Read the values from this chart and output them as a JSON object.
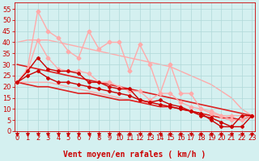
{
  "x": [
    0,
    1,
    2,
    3,
    4,
    5,
    6,
    7,
    8,
    9,
    10,
    11,
    12,
    13,
    14,
    15,
    16,
    17,
    18,
    19,
    20,
    21,
    22,
    23
  ],
  "lines": [
    {
      "y": [
        40,
        41,
        41,
        41,
        40,
        39,
        38,
        37,
        36,
        35,
        34,
        33,
        32,
        31,
        30,
        29,
        27,
        25,
        23,
        21,
        18,
        15,
        10,
        7
      ],
      "color": "#ffaaaa",
      "lw": 1.0,
      "marker": null,
      "zorder": 1
    },
    {
      "y": [
        22,
        22,
        22,
        22,
        21,
        20,
        19,
        18,
        17,
        16,
        15,
        14,
        13,
        13,
        12,
        11,
        10,
        9,
        8,
        7,
        6,
        5,
        5,
        7
      ],
      "color": "#ffaaaa",
      "lw": 1.0,
      "marker": null,
      "zorder": 1
    },
    {
      "y": [
        22,
        28,
        54,
        45,
        42,
        36,
        33,
        45,
        37,
        40,
        40,
        27,
        39,
        30,
        17,
        30,
        17,
        17,
        10,
        8,
        7,
        7,
        7,
        7
      ],
      "color": "#ffaaaa",
      "lw": 1.0,
      "marker": "D",
      "ms": 2.5,
      "zorder": 3
    },
    {
      "y": [
        22,
        27,
        41,
        33,
        28,
        27,
        27,
        26,
        22,
        22,
        20,
        18,
        18,
        14,
        17,
        17,
        13,
        11,
        10,
        9,
        7,
        5,
        5,
        7
      ],
      "color": "#ffaaaa",
      "lw": 1.0,
      "marker": "D",
      "ms": 2.5,
      "zorder": 3
    },
    {
      "y": [
        30,
        29,
        28,
        27,
        26,
        25,
        24,
        23,
        22,
        21,
        20,
        19,
        18,
        17,
        16,
        15,
        14,
        13,
        12,
        11,
        10,
        9,
        8,
        7
      ],
      "color": "#dd2222",
      "lw": 1.2,
      "marker": null,
      "zorder": 2
    },
    {
      "y": [
        22,
        21,
        20,
        20,
        19,
        18,
        17,
        17,
        16,
        15,
        14,
        14,
        13,
        12,
        11,
        11,
        10,
        9,
        8,
        7,
        6,
        6,
        5,
        7
      ],
      "color": "#dd2222",
      "lw": 1.2,
      "marker": null,
      "zorder": 2
    },
    {
      "y": [
        22,
        27,
        33,
        28,
        27,
        27,
        26,
        22,
        22,
        20,
        19,
        19,
        14,
        13,
        14,
        12,
        11,
        9,
        8,
        5,
        2,
        2,
        7,
        7
      ],
      "color": "#cc0000",
      "lw": 1.0,
      "marker": "P",
      "ms": 2.5,
      "zorder": 4
    },
    {
      "y": [
        22,
        25,
        27,
        24,
        22,
        22,
        21,
        20,
        19,
        18,
        17,
        16,
        14,
        13,
        12,
        11,
        10,
        9,
        7,
        6,
        4,
        2,
        2,
        7
      ],
      "color": "#cc0000",
      "lw": 1.0,
      "marker": "P",
      "ms": 2.5,
      "zorder": 4
    }
  ],
  "bg_color": "#d4f0f0",
  "grid_color": "#b0d8d8",
  "xlabel": "Vent moyen/en rafales ( km/h )",
  "xlabel_color": "#cc0000",
  "xlabel_fontsize": 7,
  "tick_color": "#cc0000",
  "tick_fontsize": 6,
  "ylim": [
    0,
    58
  ],
  "yticks": [
    0,
    5,
    10,
    15,
    20,
    25,
    30,
    35,
    40,
    45,
    50,
    55
  ],
  "xlim": [
    -0.3,
    23.3
  ],
  "xticks": [
    0,
    1,
    2,
    3,
    4,
    5,
    6,
    7,
    8,
    9,
    10,
    11,
    12,
    13,
    14,
    15,
    16,
    17,
    18,
    19,
    20,
    21,
    22,
    23
  ],
  "arrow_marker": "v",
  "arrow_color": "#cc0000",
  "arrow_size": 3
}
